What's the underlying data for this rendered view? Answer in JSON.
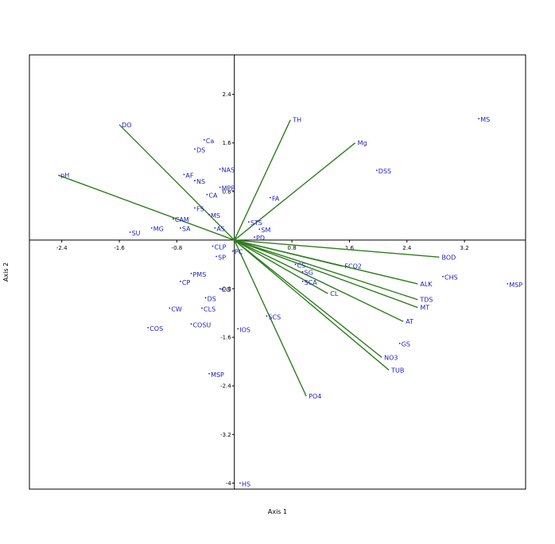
{
  "chart_data": {
    "type": "scatter",
    "title": "",
    "xlabel": "Axis 1",
    "ylabel": "Axis 2",
    "xlim": [
      -2.85,
      4.05
    ],
    "ylim": [
      -4.1,
      3.05
    ],
    "x_ticks": [
      -2.4,
      -1.6,
      -0.8,
      0.8,
      1.6,
      2.4,
      3.2
    ],
    "x_tick_labels": [
      "-2.4",
      "-1.6",
      "-0.8",
      "0.8",
      "1.6",
      "2.4",
      "3.2"
    ],
    "y_ticks": [
      2.4,
      1.6,
      0.8,
      -0.8,
      -1.6,
      -2.4,
      -3.2,
      -4.0
    ],
    "y_tick_labels": [
      "2.4",
      "1.6",
      "0.8",
      "-0.8",
      "-1.6",
      "-2.4",
      "-3.2",
      "-4"
    ],
    "colors": {
      "vectors": "#2e7d1e",
      "points": "#1c1cb8",
      "frame": "#000000"
    },
    "vectors": [
      {
        "label": "DO",
        "x": -1.6,
        "y": 1.9
      },
      {
        "label": "pH",
        "x": -2.45,
        "y": 1.07
      },
      {
        "label": "TH",
        "x": 0.78,
        "y": 1.98
      },
      {
        "label": "Mg",
        "x": 1.68,
        "y": 1.6
      },
      {
        "label": "BOD",
        "x": 2.85,
        "y": -0.28
      },
      {
        "label": "FCO2",
        "x": 1.5,
        "y": -0.43
      },
      {
        "label": "ALK",
        "x": 2.55,
        "y": -0.72
      },
      {
        "label": "TDS",
        "x": 2.55,
        "y": -0.98
      },
      {
        "label": "MT",
        "x": 2.55,
        "y": -1.11
      },
      {
        "label": "AT",
        "x": 2.35,
        "y": -1.34
      },
      {
        "label": "CL",
        "x": 1.3,
        "y": -0.88
      },
      {
        "label": "NO3",
        "x": 2.05,
        "y": -1.93
      },
      {
        "label": "TUB",
        "x": 2.15,
        "y": -2.14
      },
      {
        "label": "PO4",
        "x": 1.0,
        "y": -2.57
      }
    ],
    "points": [
      {
        "label": "MS",
        "x": 3.4,
        "y": 2.0
      },
      {
        "label": "DSS",
        "x": 1.98,
        "y": 1.15
      },
      {
        "label": "FA",
        "x": 0.5,
        "y": 0.7
      },
      {
        "label": "STS",
        "x": 0.2,
        "y": 0.3
      },
      {
        "label": "SM",
        "x": 0.35,
        "y": 0.18
      },
      {
        "label": "PD",
        "x": 0.28,
        "y": 0.05
      },
      {
        "label": "MSP",
        "x": 3.8,
        "y": -0.72
      },
      {
        "label": "CHS",
        "x": 2.9,
        "y": -0.6
      },
      {
        "label": "GS",
        "x": 2.3,
        "y": -1.7
      },
      {
        "label": "CS",
        "x": 0.85,
        "y": -0.4
      },
      {
        "label": "SG",
        "x": 0.95,
        "y": -0.52
      },
      {
        "label": "SCA",
        "x": 0.95,
        "y": -0.68
      },
      {
        "label": "SCS",
        "x": 0.45,
        "y": -1.25
      },
      {
        "label": "HS",
        "x": 0.08,
        "y": -4.0
      },
      {
        "label": "Ca",
        "x": -0.42,
        "y": 1.65
      },
      {
        "label": "DS",
        "x": -0.55,
        "y": 1.5
      },
      {
        "label": "NAS",
        "x": -0.2,
        "y": 1.17
      },
      {
        "label": "AF",
        "x": -0.7,
        "y": 1.08
      },
      {
        "label": "NS",
        "x": -0.55,
        "y": 0.98
      },
      {
        "label": "MPB",
        "x": -0.2,
        "y": 0.87
      },
      {
        "label": "CA",
        "x": -0.38,
        "y": 0.75
      },
      {
        "label": "FS",
        "x": -0.55,
        "y": 0.53
      },
      {
        "label": "MS",
        "x": -0.35,
        "y": 0.42
      },
      {
        "label": "CAM",
        "x": -0.85,
        "y": 0.35
      },
      {
        "label": "SA",
        "x": -0.75,
        "y": 0.2
      },
      {
        "label": "AS",
        "x": -0.27,
        "y": 0.2
      },
      {
        "label": "MG",
        "x": -1.15,
        "y": 0.2
      },
      {
        "label": "SU",
        "x": -1.45,
        "y": 0.13
      },
      {
        "label": "CLP",
        "x": -0.3,
        "y": -0.1
      },
      {
        "label": "SP",
        "x": -0.25,
        "y": -0.27
      },
      {
        "label": "PC",
        "x": -0.02,
        "y": -0.18
      },
      {
        "label": "PMS",
        "x": -0.6,
        "y": -0.55
      },
      {
        "label": "CP",
        "x": -0.75,
        "y": -0.68
      },
      {
        "label": "CG",
        "x": -0.2,
        "y": -0.8
      },
      {
        "label": "DS",
        "x": -0.4,
        "y": -0.95
      },
      {
        "label": "CW",
        "x": -0.9,
        "y": -1.12
      },
      {
        "label": "CLS",
        "x": -0.45,
        "y": -1.12
      },
      {
        "label": "COSU",
        "x": -0.6,
        "y": -1.38
      },
      {
        "label": "COS",
        "x": -1.2,
        "y": -1.44
      },
      {
        "label": "IOS",
        "x": 0.05,
        "y": -1.46
      },
      {
        "label": "MSP",
        "x": -0.35,
        "y": -2.2
      }
    ]
  }
}
